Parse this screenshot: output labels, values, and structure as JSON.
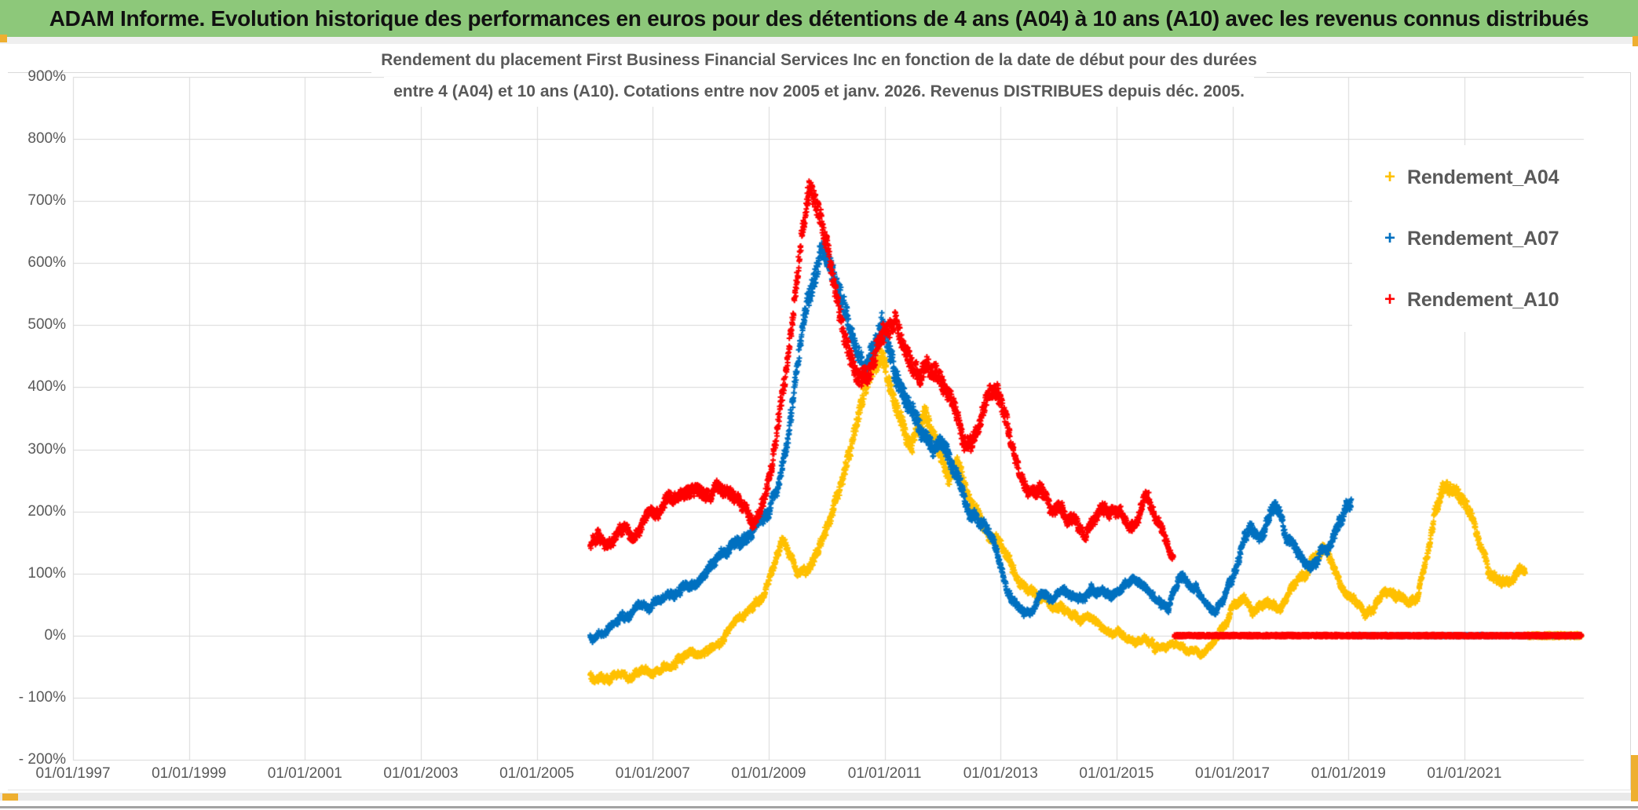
{
  "header": {
    "title": "ADAM Informe. Evolution historique des performances en euros pour des détentions de 4 ans (A04) à 10 ans (A10) avec les revenus connus distribués"
  },
  "colors": {
    "header_bg": "#8dc87a",
    "header_text": "#111111",
    "accent_orange": "#eeaf30",
    "grid": "#d9d9d9",
    "axis_text": "#595959",
    "title_text": "#595959",
    "series_a04": "#ffc000",
    "series_a07": "#0070c0",
    "series_a10": "#ff0000"
  },
  "chart_data": {
    "type": "scatter",
    "marker": "plus",
    "grid": true,
    "title_lines": [
      "Rendement du placement First Business Financial Services Inc en fonction de la date de début pour des durées",
      "entre 4 (A04) et 10 ans (A10). Cotations entre nov 2005 et janv. 2026. Revenus DISTRIBUES depuis déc. 2005."
    ],
    "x_axis": {
      "min_year": 1997.0,
      "max_year": 2023.06,
      "tick_years": [
        1997,
        1999,
        2001,
        2003,
        2005,
        2007,
        2009,
        2011,
        2013,
        2015,
        2017,
        2019,
        2021
      ],
      "tick_labels": [
        "01/01/1997",
        "01/01/1999",
        "01/01/2001",
        "01/01/2003",
        "01/01/2005",
        "01/01/2007",
        "01/01/2009",
        "01/01/2011",
        "01/01/2013",
        "01/01/2015",
        "01/01/2017",
        "01/01/2019",
        "01/01/2021"
      ]
    },
    "y_axis": {
      "min": -200,
      "max": 900,
      "tick_step": 100,
      "unit": "%",
      "tick_labels": [
        "900%",
        "800%",
        "700%",
        "600%",
        "500%",
        "400%",
        "300%",
        "200%",
        "100%",
        "0%",
        "- 100%",
        "- 200%"
      ]
    },
    "legend": {
      "position": "right",
      "items": [
        {
          "label": "Rendement_A04",
          "color": "#ffc000"
        },
        {
          "label": "Rendement_A07",
          "color": "#0070c0"
        },
        {
          "label": "Rendement_A10",
          "color": "#ff0000"
        }
      ]
    },
    "series": [
      {
        "name": "Rendement_A04",
        "color": "#ffc000",
        "zero_from": 2022.08,
        "zero_to": 2023.02,
        "zero_jitter": 5,
        "zero_lw": 2,
        "keypoints": [
          [
            2005.92,
            -63
          ],
          [
            2006.1,
            -58
          ],
          [
            2006.25,
            -62
          ],
          [
            2006.4,
            -56
          ],
          [
            2006.55,
            -60
          ],
          [
            2006.7,
            -54
          ],
          [
            2006.85,
            -44
          ],
          [
            2007.0,
            -52
          ],
          [
            2007.15,
            -47
          ],
          [
            2007.3,
            -42
          ],
          [
            2007.45,
            -46
          ],
          [
            2007.6,
            -38
          ],
          [
            2007.75,
            -30
          ],
          [
            2007.9,
            -33
          ],
          [
            2008.05,
            -24
          ],
          [
            2008.2,
            -10
          ],
          [
            2008.35,
            6
          ],
          [
            2008.5,
            26
          ],
          [
            2008.65,
            46
          ],
          [
            2008.8,
            62
          ],
          [
            2008.95,
            78
          ],
          [
            2009.1,
            112
          ],
          [
            2009.22,
            148
          ],
          [
            2009.35,
            118
          ],
          [
            2009.5,
            94
          ],
          [
            2009.65,
            106
          ],
          [
            2009.8,
            140
          ],
          [
            2009.95,
            172
          ],
          [
            2010.1,
            205
          ],
          [
            2010.25,
            242
          ],
          [
            2010.4,
            285
          ],
          [
            2010.55,
            335
          ],
          [
            2010.7,
            392
          ],
          [
            2010.85,
            432
          ],
          [
            2010.95,
            452
          ],
          [
            2011.05,
            430
          ],
          [
            2011.15,
            400
          ],
          [
            2011.3,
            358
          ],
          [
            2011.45,
            310
          ],
          [
            2011.6,
            332
          ],
          [
            2011.7,
            356
          ],
          [
            2011.8,
            330
          ],
          [
            2011.95,
            282
          ],
          [
            2012.1,
            240
          ],
          [
            2012.25,
            262
          ],
          [
            2012.4,
            230
          ],
          [
            2012.55,
            196
          ],
          [
            2012.7,
            176
          ],
          [
            2012.85,
            166
          ],
          [
            2013.0,
            150
          ],
          [
            2013.15,
            126
          ],
          [
            2013.3,
            100
          ],
          [
            2013.45,
            86
          ],
          [
            2013.6,
            76
          ],
          [
            2013.75,
            66
          ],
          [
            2013.9,
            56
          ],
          [
            2014.05,
            46
          ],
          [
            2014.2,
            36
          ],
          [
            2014.35,
            28
          ],
          [
            2014.5,
            22
          ],
          [
            2014.65,
            18
          ],
          [
            2014.8,
            12
          ],
          [
            2014.95,
            8
          ],
          [
            2015.1,
            5
          ],
          [
            2015.25,
            0
          ],
          [
            2015.4,
            -8
          ],
          [
            2015.55,
            -16
          ],
          [
            2015.7,
            -22
          ],
          [
            2015.85,
            -26
          ],
          [
            2016.0,
            -20
          ],
          [
            2016.15,
            -26
          ],
          [
            2016.3,
            -22
          ],
          [
            2016.45,
            -26
          ],
          [
            2016.6,
            -12
          ],
          [
            2016.75,
            5
          ],
          [
            2016.9,
            28
          ],
          [
            2017.05,
            50
          ],
          [
            2017.2,
            56
          ],
          [
            2017.35,
            46
          ],
          [
            2017.5,
            58
          ],
          [
            2017.65,
            62
          ],
          [
            2017.8,
            52
          ],
          [
            2017.95,
            60
          ],
          [
            2018.1,
            76
          ],
          [
            2018.25,
            96
          ],
          [
            2018.4,
            116
          ],
          [
            2018.55,
            134
          ],
          [
            2018.7,
            110
          ],
          [
            2018.85,
            80
          ],
          [
            2019.0,
            62
          ],
          [
            2019.15,
            44
          ],
          [
            2019.3,
            28
          ],
          [
            2019.45,
            40
          ],
          [
            2019.6,
            58
          ],
          [
            2019.75,
            64
          ],
          [
            2019.9,
            52
          ],
          [
            2020.05,
            48
          ],
          [
            2020.2,
            62
          ],
          [
            2020.35,
            140
          ],
          [
            2020.5,
            215
          ],
          [
            2020.62,
            252
          ],
          [
            2020.75,
            240
          ],
          [
            2020.88,
            228
          ],
          [
            2021.0,
            205
          ],
          [
            2021.1,
            185
          ],
          [
            2021.22,
            150
          ],
          [
            2021.35,
            115
          ],
          [
            2021.5,
            95
          ],
          [
            2021.65,
            76
          ],
          [
            2021.8,
            82
          ],
          [
            2021.95,
            98
          ],
          [
            2022.05,
            102
          ]
        ]
      },
      {
        "name": "Rendement_A07",
        "color": "#0070c0",
        "zero_from": 2019.1,
        "zero_to": 2023.02,
        "zero_jitter": 2.5,
        "zero_lw": 2,
        "keypoints": [
          [
            2005.92,
            -2
          ],
          [
            2006.1,
            8
          ],
          [
            2006.3,
            20
          ],
          [
            2006.5,
            32
          ],
          [
            2006.7,
            46
          ],
          [
            2006.85,
            56
          ],
          [
            2007.0,
            44
          ],
          [
            2007.15,
            56
          ],
          [
            2007.3,
            70
          ],
          [
            2007.5,
            82
          ],
          [
            2007.7,
            96
          ],
          [
            2007.9,
            90
          ],
          [
            2008.1,
            112
          ],
          [
            2008.3,
            132
          ],
          [
            2008.45,
            152
          ],
          [
            2008.6,
            172
          ],
          [
            2008.8,
            186
          ],
          [
            2009.0,
            192
          ],
          [
            2009.15,
            232
          ],
          [
            2009.3,
            305
          ],
          [
            2009.45,
            405
          ],
          [
            2009.6,
            510
          ],
          [
            2009.75,
            580
          ],
          [
            2009.9,
            635
          ],
          [
            2010.05,
            618
          ],
          [
            2010.2,
            580
          ],
          [
            2010.35,
            532
          ],
          [
            2010.5,
            482
          ],
          [
            2010.65,
            442
          ],
          [
            2010.8,
            468
          ],
          [
            2010.95,
            508
          ],
          [
            2011.1,
            462
          ],
          [
            2011.25,
            422
          ],
          [
            2011.4,
            392
          ],
          [
            2011.55,
            362
          ],
          [
            2011.7,
            332
          ],
          [
            2011.85,
            312
          ],
          [
            2012.0,
            300
          ],
          [
            2012.15,
            272
          ],
          [
            2012.3,
            242
          ],
          [
            2012.5,
            202
          ],
          [
            2012.7,
            172
          ],
          [
            2012.9,
            132
          ],
          [
            2013.1,
            76
          ],
          [
            2013.3,
            50
          ],
          [
            2013.5,
            36
          ],
          [
            2013.7,
            60
          ],
          [
            2013.9,
            50
          ],
          [
            2014.1,
            66
          ],
          [
            2014.3,
            56
          ],
          [
            2014.5,
            66
          ],
          [
            2014.7,
            76
          ],
          [
            2014.9,
            60
          ],
          [
            2015.1,
            70
          ],
          [
            2015.3,
            80
          ],
          [
            2015.5,
            66
          ],
          [
            2015.7,
            56
          ],
          [
            2015.9,
            46
          ],
          [
            2016.1,
            86
          ],
          [
            2016.3,
            76
          ],
          [
            2016.5,
            60
          ],
          [
            2016.7,
            42
          ],
          [
            2016.85,
            62
          ],
          [
            2017.0,
            100
          ],
          [
            2017.15,
            150
          ],
          [
            2017.3,
            186
          ],
          [
            2017.45,
            162
          ],
          [
            2017.6,
            196
          ],
          [
            2017.75,
            206
          ],
          [
            2017.9,
            162
          ],
          [
            2018.05,
            132
          ],
          [
            2018.2,
            112
          ],
          [
            2018.35,
            96
          ],
          [
            2018.5,
            122
          ],
          [
            2018.65,
            142
          ],
          [
            2018.8,
            172
          ],
          [
            2018.95,
            202
          ],
          [
            2019.05,
            214
          ]
        ]
      },
      {
        "name": "Rendement_A10",
        "color": "#ff0000",
        "zero_from": 2016.0,
        "zero_to": 2023.02,
        "zero_jitter": 3,
        "zero_lw": 2.6,
        "keypoints": [
          [
            2005.92,
            140
          ],
          [
            2006.05,
            156
          ],
          [
            2006.2,
            130
          ],
          [
            2006.35,
            150
          ],
          [
            2006.5,
            162
          ],
          [
            2006.65,
            146
          ],
          [
            2006.8,
            166
          ],
          [
            2006.95,
            186
          ],
          [
            2007.1,
            200
          ],
          [
            2007.25,
            212
          ],
          [
            2007.4,
            202
          ],
          [
            2007.55,
            216
          ],
          [
            2007.7,
            226
          ],
          [
            2007.85,
            236
          ],
          [
            2008.0,
            230
          ],
          [
            2008.15,
            242
          ],
          [
            2008.3,
            252
          ],
          [
            2008.45,
            236
          ],
          [
            2008.6,
            212
          ],
          [
            2008.75,
            196
          ],
          [
            2008.9,
            232
          ],
          [
            2009.05,
            292
          ],
          [
            2009.2,
            382
          ],
          [
            2009.35,
            482
          ],
          [
            2009.5,
            602
          ],
          [
            2009.6,
            682
          ],
          [
            2009.7,
            742
          ],
          [
            2009.8,
            722
          ],
          [
            2009.9,
            692
          ],
          [
            2010.0,
            652
          ],
          [
            2010.1,
            602
          ],
          [
            2010.2,
            552
          ],
          [
            2010.3,
            502
          ],
          [
            2010.45,
            452
          ],
          [
            2010.6,
            422
          ],
          [
            2010.75,
            442
          ],
          [
            2010.9,
            482
          ],
          [
            2011.05,
            502
          ],
          [
            2011.2,
            522
          ],
          [
            2011.3,
            492
          ],
          [
            2011.45,
            462
          ],
          [
            2011.6,
            432
          ],
          [
            2011.75,
            452
          ],
          [
            2011.9,
            422
          ],
          [
            2012.05,
            392
          ],
          [
            2012.2,
            362
          ],
          [
            2012.35,
            322
          ],
          [
            2012.5,
            302
          ],
          [
            2012.65,
            332
          ],
          [
            2012.8,
            372
          ],
          [
            2012.95,
            376
          ],
          [
            2013.1,
            342
          ],
          [
            2013.25,
            282
          ],
          [
            2013.4,
            236
          ],
          [
            2013.55,
            216
          ],
          [
            2013.7,
            246
          ],
          [
            2013.85,
            212
          ],
          [
            2014.0,
            222
          ],
          [
            2014.15,
            202
          ],
          [
            2014.3,
            182
          ],
          [
            2014.45,
            166
          ],
          [
            2014.6,
            192
          ],
          [
            2014.75,
            206
          ],
          [
            2014.9,
            182
          ],
          [
            2015.05,
            192
          ],
          [
            2015.2,
            166
          ],
          [
            2015.35,
            176
          ],
          [
            2015.5,
            222
          ],
          [
            2015.6,
            202
          ],
          [
            2015.7,
            172
          ],
          [
            2015.8,
            152
          ],
          [
            2015.9,
            126
          ],
          [
            2015.98,
            112
          ]
        ]
      }
    ]
  }
}
